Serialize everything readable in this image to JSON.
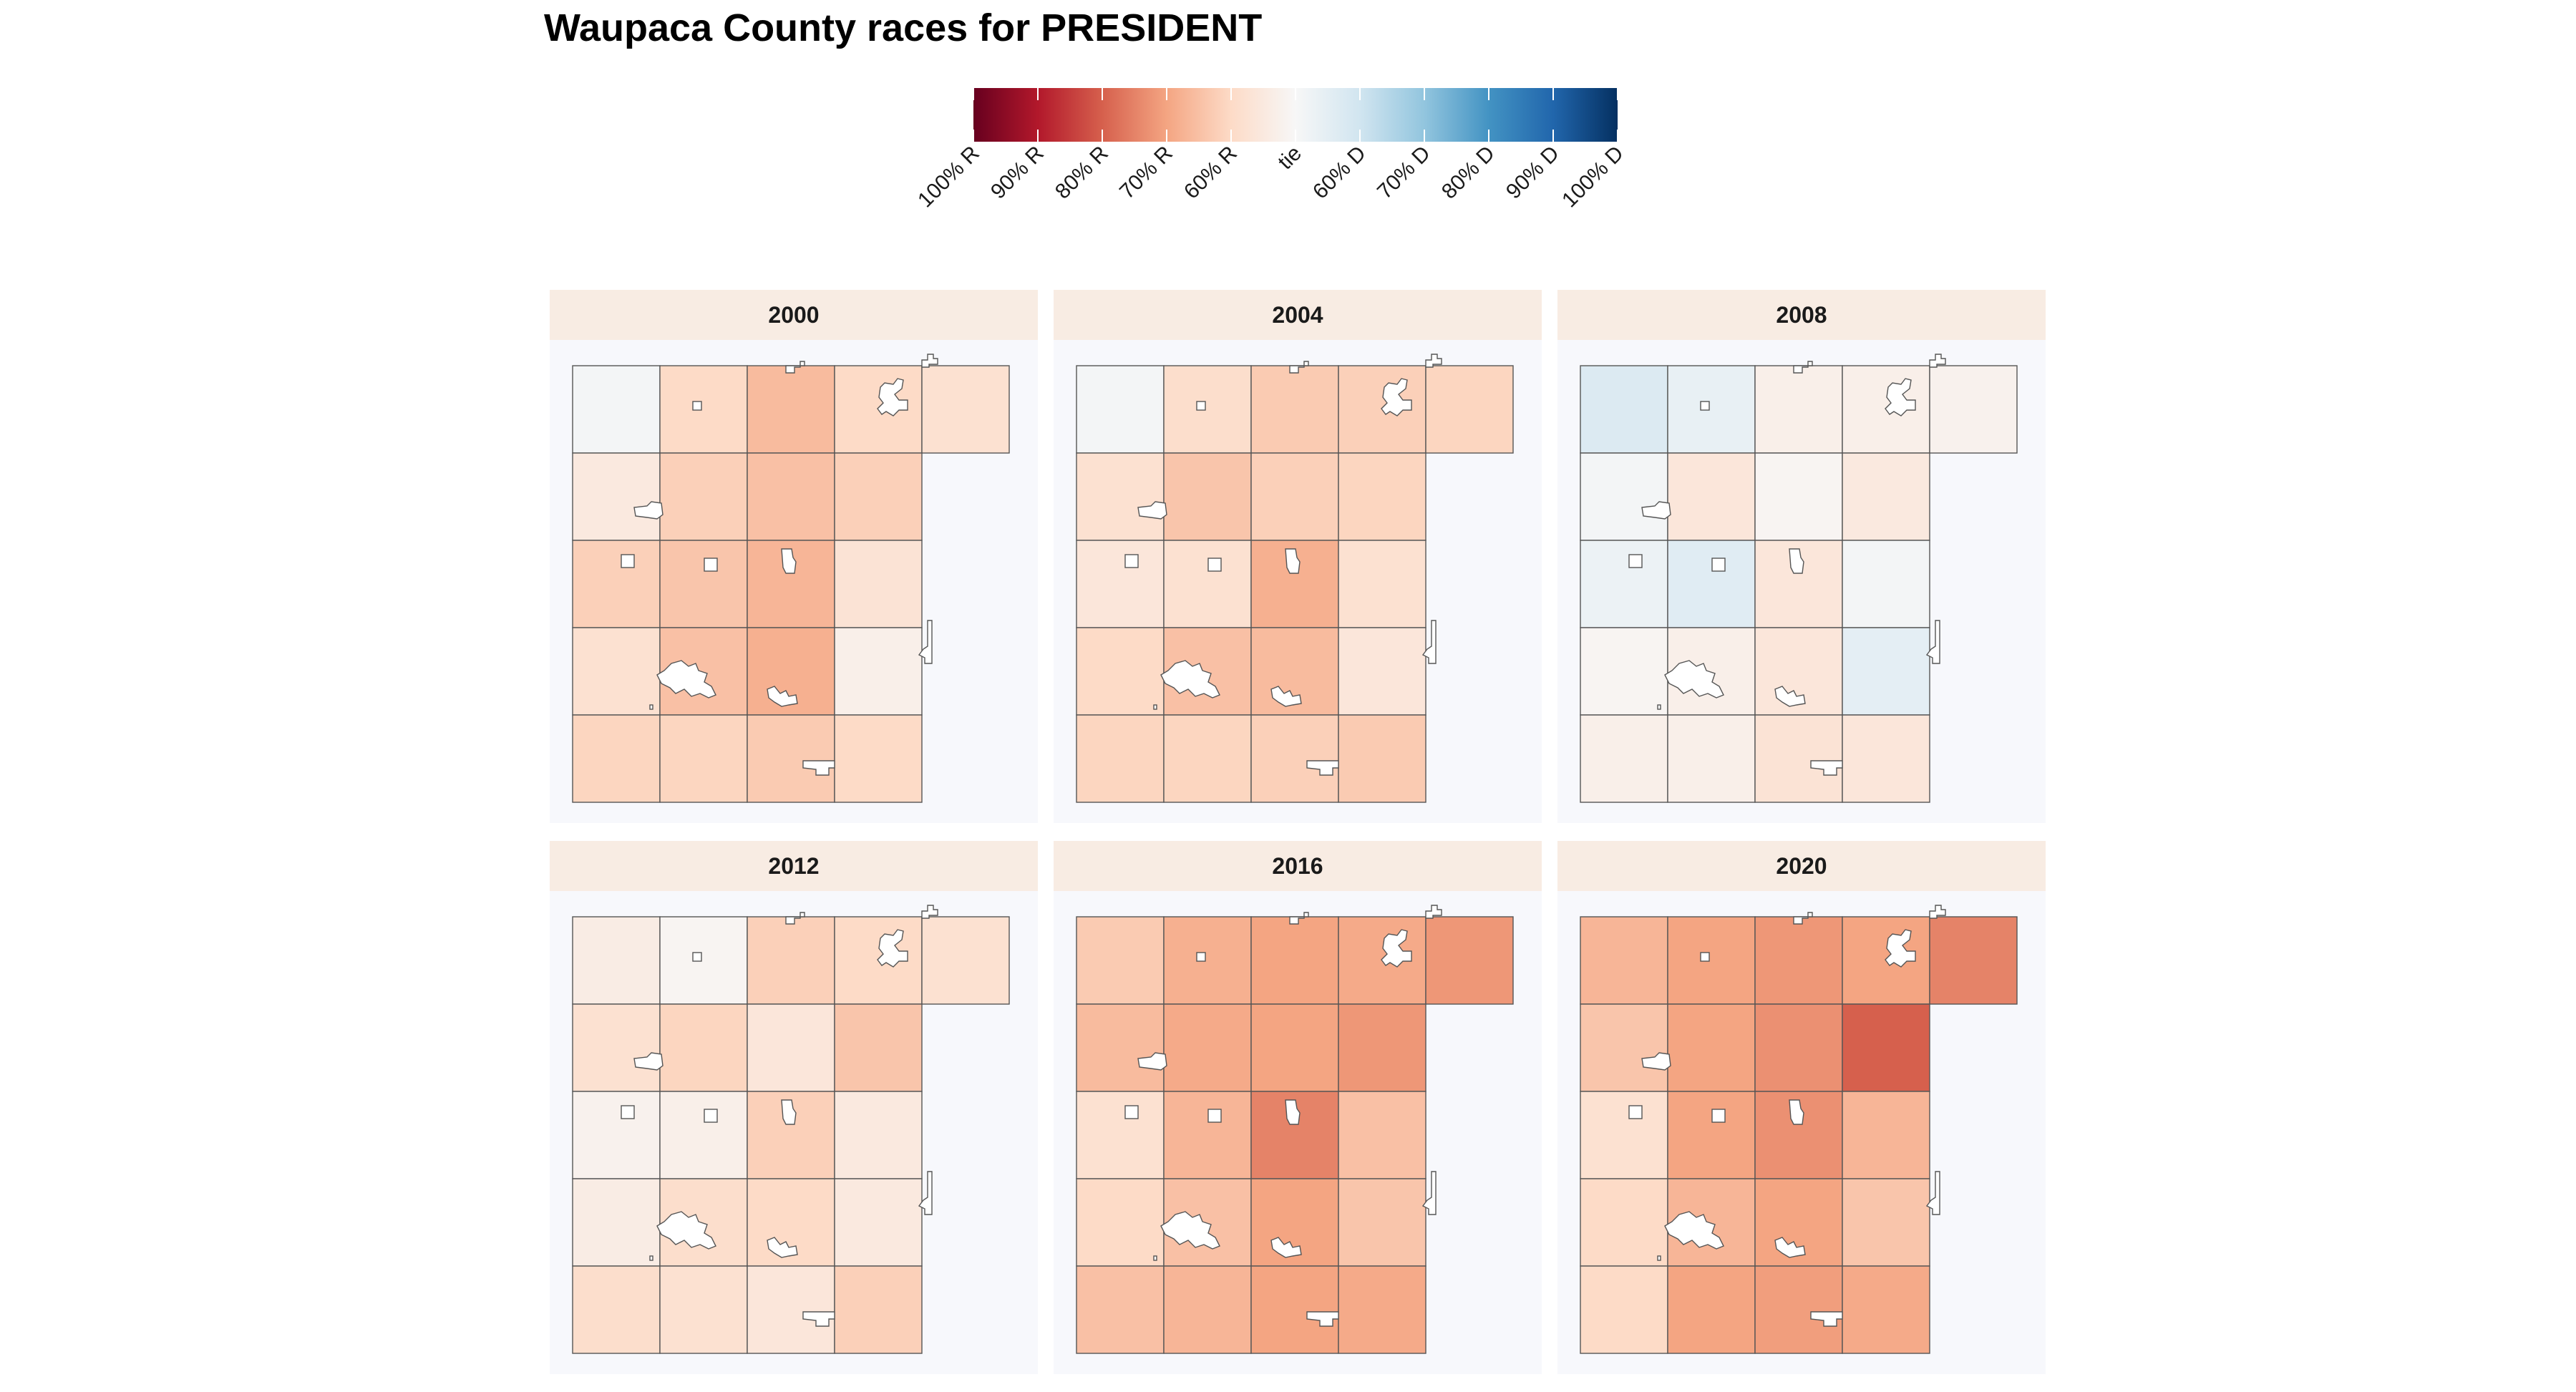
{
  "title": "Waupaca County races for PRESIDENT",
  "legend": {
    "labels": [
      "100% R",
      "90% R",
      "80% R",
      "70% R",
      "60% R",
      "tie",
      "60% D",
      "70% D",
      "80% D",
      "90% D",
      "100% D"
    ],
    "colors": [
      "#67001f",
      "#b2182b",
      "#d6604d",
      "#f4a582",
      "#fddbc7",
      "#f7f7f7",
      "#d1e5f0",
      "#92c5de",
      "#4393c3",
      "#2166ac",
      "#053061"
    ]
  },
  "palette": {
    "panel_bg": "#f7f8fc",
    "strip_bg": "#f8ece3",
    "border": "#555555",
    "municipality_fill": "#ffffff"
  },
  "panels": [
    {
      "year": "2000",
      "shares": [
        [
          0.49,
          0.6,
          0.66,
          0.6,
          0.58
        ],
        [
          0.55,
          0.62,
          0.65,
          0.62,
          null
        ],
        [
          0.62,
          0.64,
          0.67,
          0.57,
          null
        ],
        [
          0.58,
          0.65,
          0.68,
          0.53,
          null
        ],
        [
          0.61,
          0.61,
          0.63,
          0.6,
          null
        ]
      ]
    },
    {
      "year": "2004",
      "shares": [
        [
          0.49,
          0.59,
          0.63,
          0.62,
          0.61
        ],
        [
          0.58,
          0.64,
          0.62,
          0.61,
          null
        ],
        [
          0.56,
          0.58,
          0.68,
          0.58,
          null
        ],
        [
          0.6,
          0.65,
          0.66,
          0.56,
          null
        ],
        [
          0.61,
          0.61,
          0.62,
          0.63,
          null
        ]
      ]
    },
    {
      "year": "2008",
      "shares": [
        [
          0.43,
          0.46,
          0.53,
          0.53,
          0.52
        ],
        [
          0.49,
          0.56,
          0.51,
          0.55,
          null
        ],
        [
          0.47,
          0.44,
          0.56,
          0.49,
          null
        ],
        [
          0.51,
          0.53,
          0.56,
          0.45,
          null
        ],
        [
          0.53,
          0.53,
          0.57,
          0.56,
          null
        ]
      ]
    },
    {
      "year": "2012",
      "shares": [
        [
          0.54,
          0.51,
          0.62,
          0.6,
          0.58
        ],
        [
          0.58,
          0.61,
          0.56,
          0.64,
          null
        ],
        [
          0.52,
          0.53,
          0.62,
          0.55,
          null
        ],
        [
          0.54,
          0.59,
          0.6,
          0.55,
          null
        ],
        [
          0.59,
          0.58,
          0.56,
          0.62,
          null
        ]
      ]
    },
    {
      "year": "2016",
      "shares": [
        [
          0.63,
          0.68,
          0.7,
          0.69,
          0.72
        ],
        [
          0.66,
          0.69,
          0.7,
          0.72,
          null
        ],
        [
          0.58,
          0.67,
          0.75,
          0.65,
          null
        ],
        [
          0.6,
          0.65,
          0.7,
          0.64,
          null
        ],
        [
          0.65,
          0.67,
          0.7,
          0.69,
          null
        ]
      ]
    },
    {
      "year": "2020",
      "shares": [
        [
          0.67,
          0.7,
          0.72,
          0.7,
          0.75
        ],
        [
          0.64,
          0.7,
          0.73,
          0.8,
          null
        ],
        [
          0.58,
          0.7,
          0.73,
          0.67,
          null
        ],
        [
          0.6,
          0.67,
          0.7,
          0.64,
          null
        ],
        [
          0.6,
          0.7,
          0.71,
          0.69,
          null
        ]
      ]
    }
  ]
}
